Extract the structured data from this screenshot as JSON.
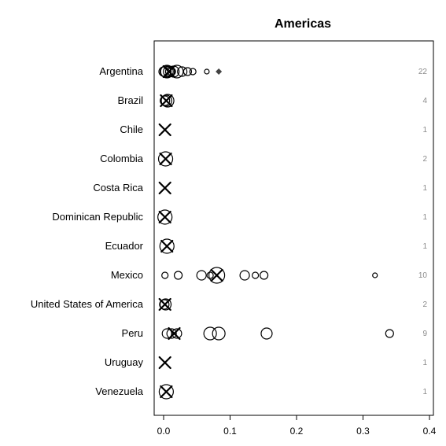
{
  "chart_data": {
    "type": "scatter",
    "title": "Americas",
    "xlabel": "",
    "ylabel": "",
    "xlim": [
      0,
      0.4
    ],
    "x_ticks": [
      "0.0",
      "0.1",
      "0.2",
      "0.3",
      "0.4"
    ],
    "categories": [
      "Argentina",
      "Brazil",
      "Chile",
      "Colombia",
      "Costa Rica",
      "Dominican Republic",
      "Ecuador",
      "Mexico",
      "United States of America",
      "Peru",
      "Uruguay",
      "Venezuela"
    ],
    "counts": [
      22,
      4,
      1,
      2,
      1,
      1,
      1,
      10,
      2,
      9,
      1,
      1
    ],
    "pooled_estimate": [
      0.008,
      0.004,
      0.002,
      0.003,
      0.002,
      0.002,
      0.005,
      0.08,
      0.002,
      0.016,
      0.002,
      0.004
    ],
    "dot_marks": [
      {
        "category": "Argentina",
        "x": 0.083
      }
    ],
    "points": [
      {
        "category": "Argentina",
        "values": [
          0.0,
          0.003,
          0.005,
          0.008,
          0.01,
          0.012,
          0.015,
          0.02,
          0.028,
          0.036,
          0.044,
          0.065
        ]
      },
      {
        "category": "Brazil",
        "values": [
          0.002,
          0.004,
          0.006
        ]
      },
      {
        "category": "Chile",
        "values": []
      },
      {
        "category": "Colombia",
        "values": [
          0.003
        ]
      },
      {
        "category": "Costa Rica",
        "values": []
      },
      {
        "category": "Dominican Republic",
        "values": [
          0.002
        ]
      },
      {
        "category": "Ecuador",
        "values": [
          0.005
        ]
      },
      {
        "category": "Mexico",
        "values": [
          0.002,
          0.022,
          0.057,
          0.07,
          0.08,
          0.122,
          0.138,
          0.151,
          0.318
        ]
      },
      {
        "category": "United States of America",
        "values": [
          0.001,
          0.003
        ]
      },
      {
        "category": "Peru",
        "values": [
          0.005,
          0.012,
          0.02,
          0.07,
          0.083,
          0.155,
          0.34
        ]
      },
      {
        "category": "Uruguay",
        "values": []
      },
      {
        "category": "Venezuela",
        "values": [
          0.004
        ]
      }
    ],
    "grid": false,
    "legend": "none"
  }
}
